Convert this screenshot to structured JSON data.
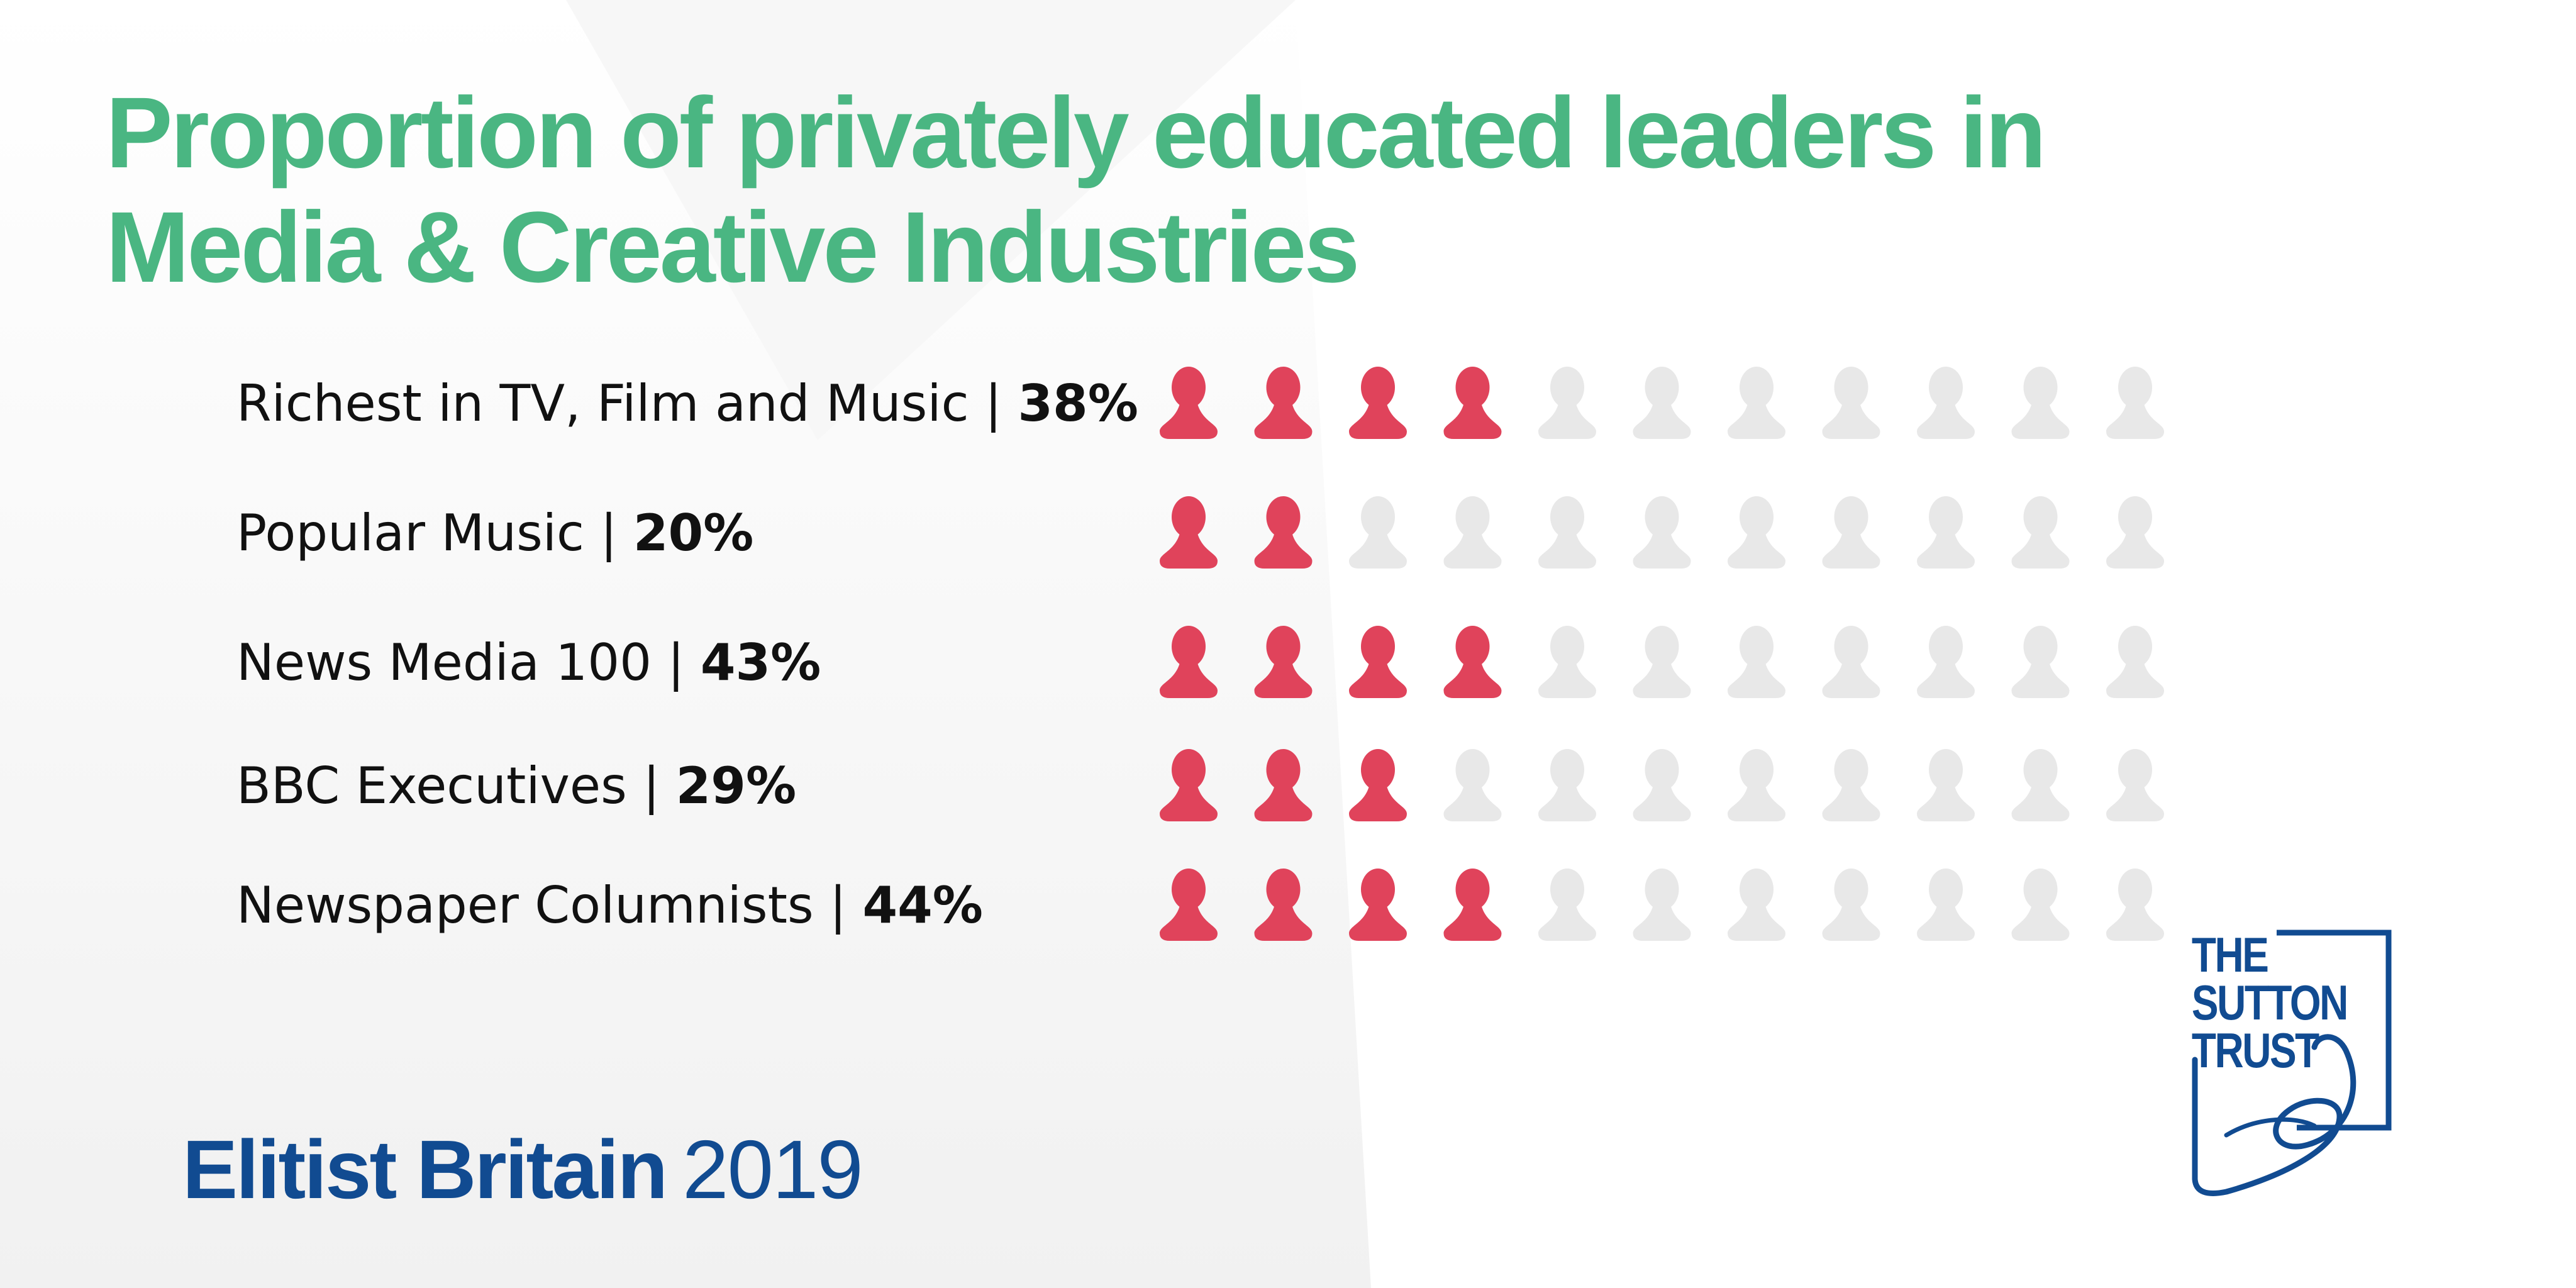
{
  "title": {
    "line1": "Proportion of privately educated leaders in",
    "line2": "Media & Creative Industries"
  },
  "chart_data": {
    "type": "pictogram",
    "icons_per_row": 11,
    "rows": [
      {
        "label": "Richest in TV, Film and Music |",
        "value_text": "38%",
        "value": 38,
        "filled_icons": 4
      },
      {
        "label": "Popular Music |",
        "value_text": "20%",
        "value": 20,
        "filled_icons": 2
      },
      {
        "label": "News Media 100 |",
        "value_text": "43%",
        "value": 43,
        "filled_icons": 4
      },
      {
        "label": "BBC Executives |",
        "value_text": "29%",
        "value": 29,
        "filled_icons": 3
      },
      {
        "label": "Newspaper Columnists |",
        "value_text": "44%",
        "value": 44,
        "filled_icons": 4
      }
    ]
  },
  "colors": {
    "title": "#4ab682",
    "icon_filled": "#e0435b",
    "icon_empty": "#e8e8e8",
    "brand": "#114b91"
  },
  "footer": {
    "brand": "Elitist Britain",
    "year": "2019"
  },
  "logo": {
    "line1": "THE",
    "line2": "SUTTON",
    "line3": "TRUST"
  }
}
